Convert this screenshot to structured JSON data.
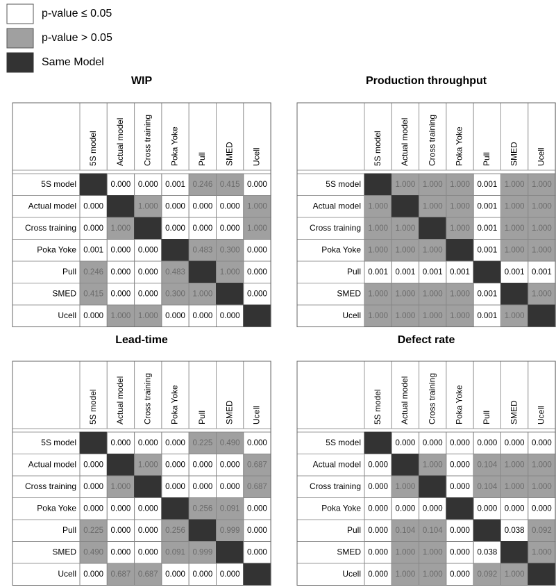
{
  "legend": [
    {
      "label": "p-value ≤ 0.05"
    },
    {
      "label": "p-value > 0.05"
    },
    {
      "label": "Same Model"
    }
  ],
  "matrices": [
    {
      "title": "WIP",
      "columns": [
        "5S model",
        "Actual model",
        "Cross training",
        "Poka Yoke",
        "Pull",
        "SMED",
        "Ucell"
      ],
      "rows": [
        {
          "label": "5S model",
          "cells": [
            null,
            "0.000",
            "0.000",
            "0.001",
            "0.246",
            "0.415",
            "0.000"
          ]
        },
        {
          "label": "Actual model",
          "cells": [
            "0.000",
            null,
            "1.000",
            "0.000",
            "0.000",
            "0.000",
            "1.000"
          ]
        },
        {
          "label": "Cross training",
          "cells": [
            "0.000",
            "1.000",
            null,
            "0.000",
            "0.000",
            "0.000",
            "1.000"
          ]
        },
        {
          "label": "Poka Yoke",
          "cells": [
            "0.001",
            "0.000",
            "0.000",
            null,
            "0.483",
            "0.300",
            "0.000"
          ]
        },
        {
          "label": "Pull",
          "cells": [
            "0.246",
            "0.000",
            "0.000",
            "0.483",
            null,
            "1.000",
            "0.000"
          ]
        },
        {
          "label": "SMED",
          "cells": [
            "0.415",
            "0.000",
            "0.000",
            "0.300",
            "1.000",
            null,
            "0.000"
          ]
        },
        {
          "label": "Ucell",
          "cells": [
            "0.000",
            "1.000",
            "1.000",
            "0.000",
            "0.000",
            "0.000",
            null
          ]
        }
      ]
    },
    {
      "title": "Production throughput",
      "columns": [
        "5S model",
        "Actual model",
        "Cross training",
        "Poka Yoke",
        "Pull",
        "SMED",
        "Ucell"
      ],
      "rows": [
        {
          "label": "5S model",
          "cells": [
            null,
            "1.000",
            "1.000",
            "1.000",
            "0.001",
            "1.000",
            "1.000"
          ]
        },
        {
          "label": "Actual model",
          "cells": [
            "1.000",
            null,
            "1.000",
            "1.000",
            "0.001",
            "1.000",
            "1.000"
          ]
        },
        {
          "label": "Cross training",
          "cells": [
            "1.000",
            "1.000",
            null,
            "1.000",
            "0.001",
            "1.000",
            "1.000"
          ]
        },
        {
          "label": "Poka Yoke",
          "cells": [
            "1.000",
            "1.000",
            "1.000",
            null,
            "0.001",
            "1.000",
            "1.000"
          ]
        },
        {
          "label": "Pull",
          "cells": [
            "0.001",
            "0.001",
            "0.001",
            "0.001",
            null,
            "0.001",
            "0.001"
          ]
        },
        {
          "label": "SMED",
          "cells": [
            "1.000",
            "1.000",
            "1.000",
            "1.000",
            "0.001",
            null,
            "1.000"
          ]
        },
        {
          "label": "Ucell",
          "cells": [
            "1.000",
            "1.000",
            "1.000",
            "1.000",
            "0.001",
            "1.000",
            null
          ]
        }
      ]
    },
    {
      "title": "Lead-time",
      "columns": [
        "5S model",
        "Actual model",
        "Cross training",
        "Poka Yoke",
        "Pull",
        "SMED",
        "Ucell"
      ],
      "rows": [
        {
          "label": "5S model",
          "cells": [
            null,
            "0.000",
            "0.000",
            "0.000",
            "0.225",
            "0.490",
            "0.000"
          ]
        },
        {
          "label": "Actual model",
          "cells": [
            "0.000",
            null,
            "1.000",
            "0.000",
            "0.000",
            "0.000",
            "0.687"
          ]
        },
        {
          "label": "Cross training",
          "cells": [
            "0.000",
            "1.000",
            null,
            "0.000",
            "0.000",
            "0.000",
            "0.687"
          ]
        },
        {
          "label": "Poka Yoke",
          "cells": [
            "0.000",
            "0.000",
            "0.000",
            null,
            "0.256",
            "0.091",
            "0.000"
          ]
        },
        {
          "label": "Pull",
          "cells": [
            "0.225",
            "0.000",
            "0.000",
            "0.256",
            null,
            "0.999",
            "0.000"
          ]
        },
        {
          "label": "SMED",
          "cells": [
            "0.490",
            "0.000",
            "0.000",
            "0.091",
            "0.999",
            null,
            "0.000"
          ]
        },
        {
          "label": "Ucell",
          "cells": [
            "0.000",
            "0.687",
            "0.687",
            "0.000",
            "0.000",
            "0.000",
            null
          ]
        }
      ]
    },
    {
      "title": "Defect rate",
      "columns": [
        "5S model",
        "Actual model",
        "Cross training",
        "Poka Yoke",
        "Pull",
        "SMED",
        "Ucell"
      ],
      "rows": [
        {
          "label": "5S model",
          "cells": [
            null,
            "0.000",
            "0.000",
            "0.000",
            "0.000",
            "0.000",
            "0.000"
          ]
        },
        {
          "label": "Actual model",
          "cells": [
            "0.000",
            null,
            "1.000",
            "0.000",
            "0.104",
            "1.000",
            "1.000"
          ]
        },
        {
          "label": "Cross training",
          "cells": [
            "0.000",
            "1.000",
            null,
            "0.000",
            "0.104",
            "1.000",
            "1.000"
          ]
        },
        {
          "label": "Poka Yoke",
          "cells": [
            "0.000",
            "0.000",
            "0.000",
            null,
            "0.000",
            "0.000",
            "0.000"
          ]
        },
        {
          "label": "Pull",
          "cells": [
            "0.000",
            "0.104",
            "0.104",
            "0.000",
            null,
            "0.038",
            "0.092"
          ]
        },
        {
          "label": "SMED",
          "cells": [
            "0.000",
            "1.000",
            "1.000",
            "0.000",
            "0.038",
            null,
            "1.000"
          ]
        },
        {
          "label": "Ucell",
          "cells": [
            "0.000",
            "1.000",
            "1.000",
            "0.000",
            "0.092",
            "1.000",
            null
          ]
        }
      ]
    }
  ]
}
